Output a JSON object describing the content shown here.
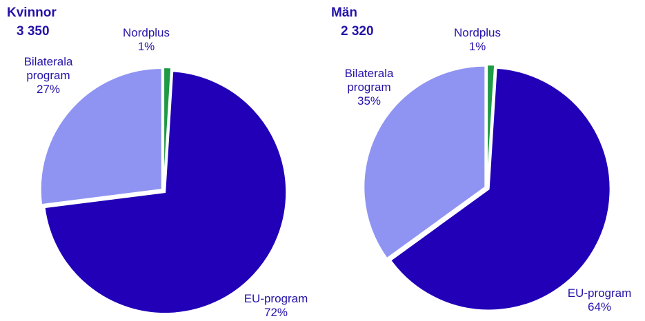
{
  "chart_data": [
    {
      "type": "pie",
      "title": "Kvinnor",
      "subtitle": "3 350",
      "categories": [
        "Nordplus",
        "EU-program",
        "Bilaterala program"
      ],
      "values": [
        1,
        72,
        27
      ],
      "value_labels": [
        "1%",
        "72%",
        "27%"
      ],
      "colors": [
        "#1f9a45",
        "#2200b8",
        "#8f94f2"
      ]
    },
    {
      "type": "pie",
      "title": "Män",
      "subtitle": "2 320",
      "categories": [
        "Nordplus",
        "EU-program",
        "Bilaterala program"
      ],
      "values": [
        1,
        64,
        35
      ],
      "value_labels": [
        "1%",
        "64%",
        "35%"
      ],
      "colors": [
        "#1f9a45",
        "#2200b8",
        "#8f94f2"
      ]
    }
  ]
}
